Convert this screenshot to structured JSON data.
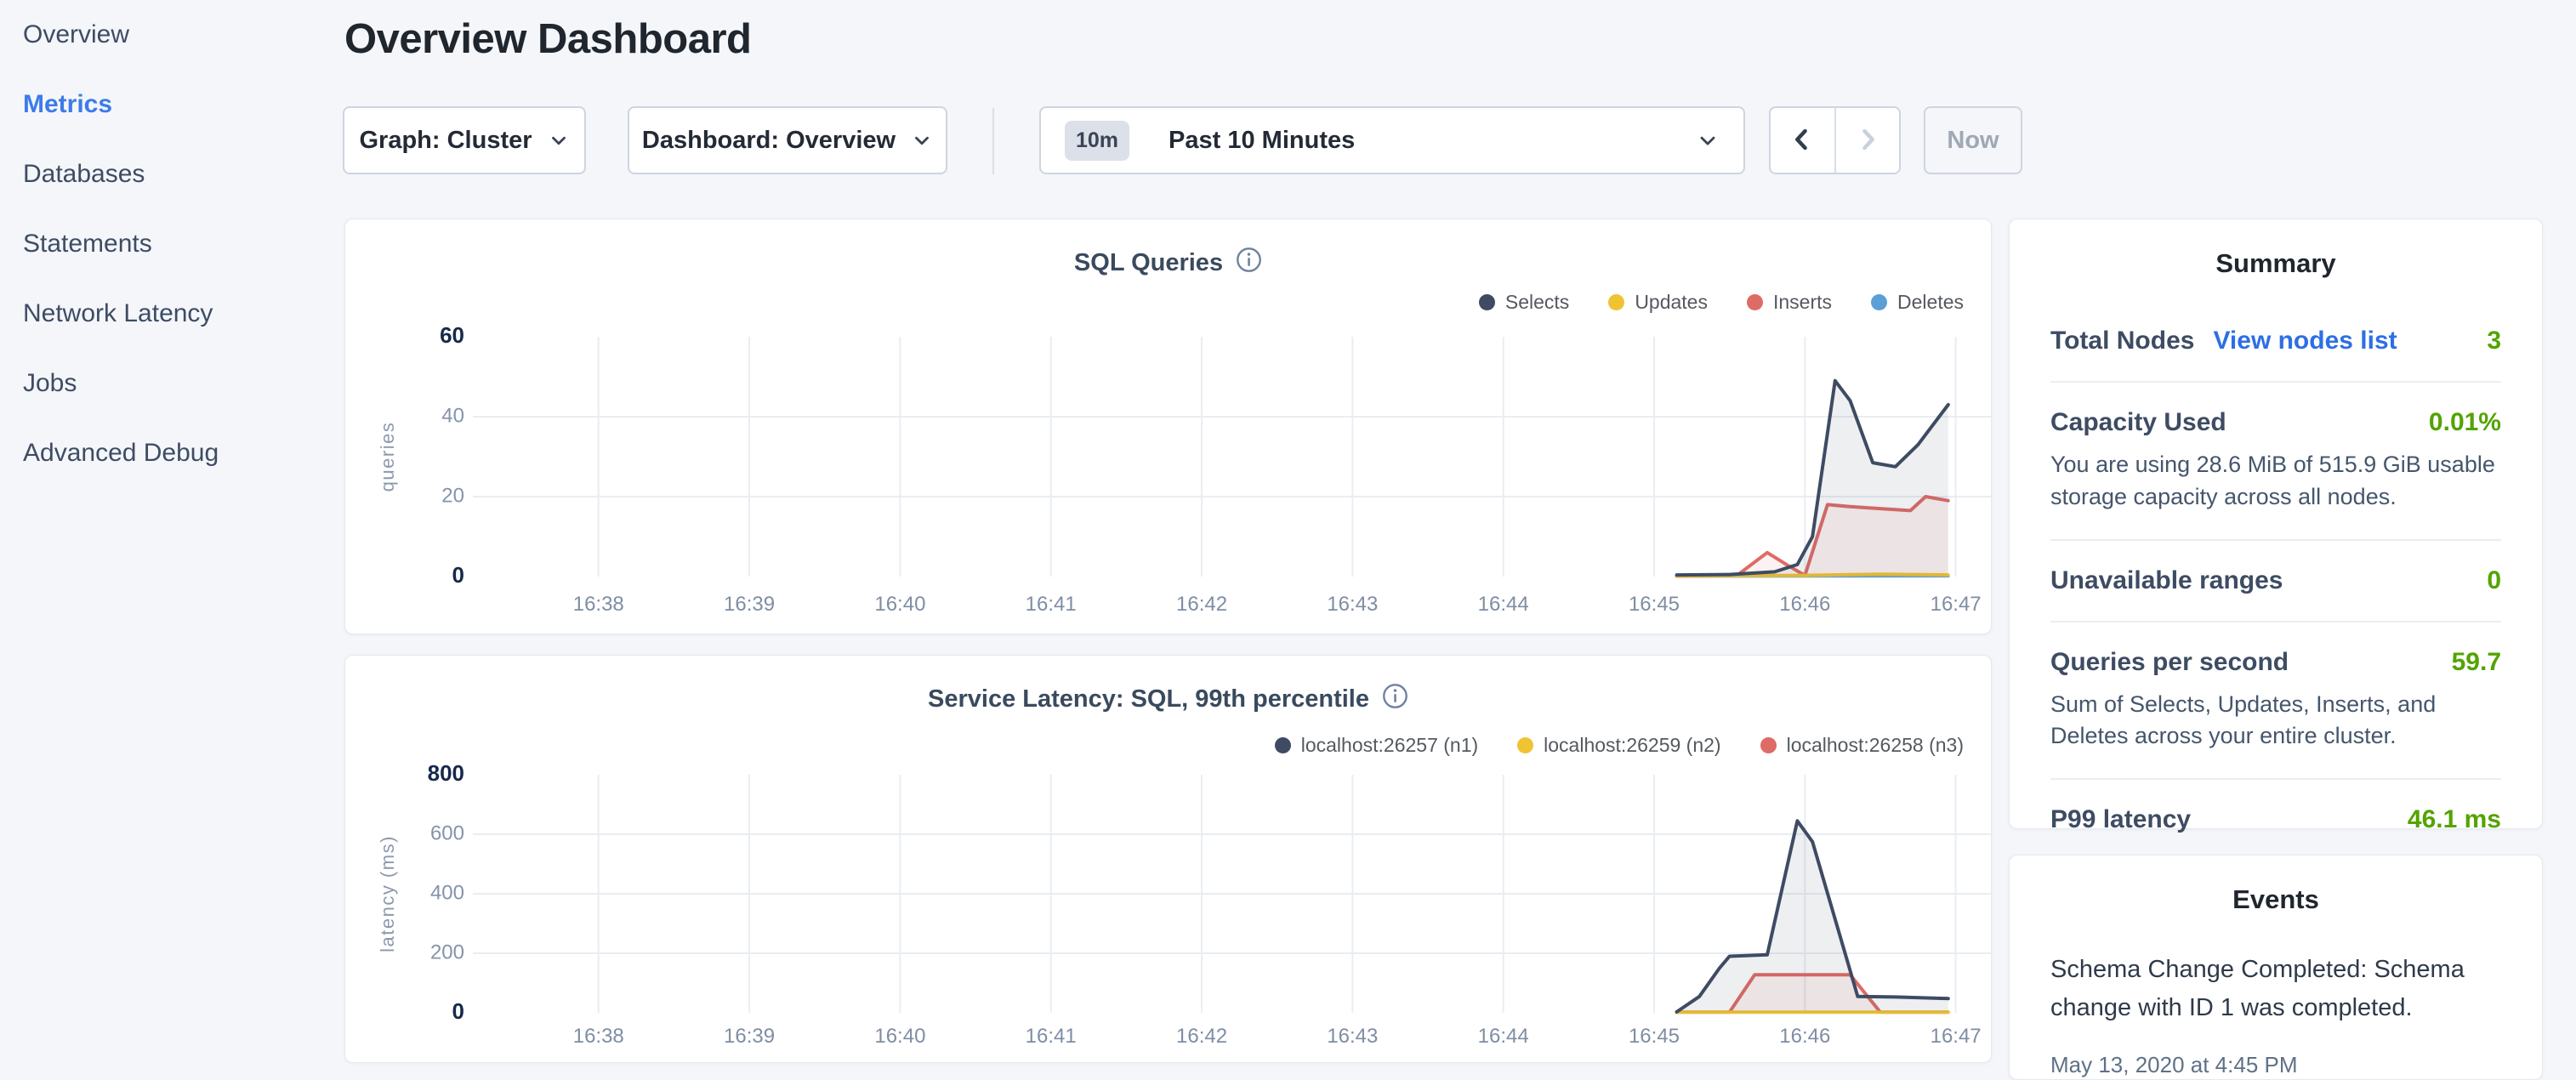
{
  "sidebar": {
    "items": [
      {
        "key": "overview",
        "label": "Overview",
        "active": false
      },
      {
        "key": "metrics",
        "label": "Metrics",
        "active": true
      },
      {
        "key": "databases",
        "label": "Databases",
        "active": false
      },
      {
        "key": "statements",
        "label": "Statements",
        "active": false
      },
      {
        "key": "network-latency",
        "label": "Network Latency",
        "active": false
      },
      {
        "key": "jobs",
        "label": "Jobs",
        "active": false
      },
      {
        "key": "advanced-debug",
        "label": "Advanced Debug",
        "active": false
      }
    ]
  },
  "header": {
    "title": "Overview Dashboard",
    "graph_dropdown_label": "Graph: Cluster",
    "dashboard_dropdown_label": "Dashboard: Overview",
    "time_range": {
      "badge": "10m",
      "label": "Past 10 Minutes"
    },
    "now_label": "Now",
    "icons": [
      "chevron-down-icon",
      "chevron-left-icon",
      "chevron-right-icon",
      "info-icon"
    ]
  },
  "colors": {
    "accent_blue": "#3D7BE8",
    "link_blue": "#2D6FE4",
    "value_green": "#54A300",
    "series_navy": "#3E4B63",
    "series_yellow": "#EFC332",
    "series_red": "#DE6B66",
    "series_blue": "#5C9FD6",
    "grid": "#E9EDF3"
  },
  "chart_data": [
    {
      "type": "line",
      "title": "SQL Queries",
      "ylabel": "queries",
      "xlabel": "",
      "ylim": [
        0,
        60
      ],
      "yticks": [
        0,
        20,
        40,
        60
      ],
      "xticks": [
        "16:38",
        "16:39",
        "16:40",
        "16:41",
        "16:42",
        "16:43",
        "16:44",
        "16:45",
        "16:46",
        "16:47"
      ],
      "x_domain": [
        "16:37:10",
        "16:47:14"
      ],
      "grid": true,
      "legend_position": "top-right",
      "series": [
        {
          "name": "Selects",
          "color": "#3E4B63",
          "points": [
            [
              "16:45:09",
              0.4
            ],
            [
              "16:45:30",
              0.5
            ],
            [
              "16:45:48",
              1.2
            ],
            [
              "16:45:57",
              3
            ],
            [
              "16:46:03",
              10
            ],
            [
              "16:46:12",
              49
            ],
            [
              "16:46:18",
              44
            ],
            [
              "16:46:27",
              28.5
            ],
            [
              "16:46:36",
              27.5
            ],
            [
              "16:46:45",
              33
            ],
            [
              "16:46:57",
              43
            ]
          ]
        },
        {
          "name": "Updates",
          "color": "#EFC332",
          "points": [
            [
              "16:45:09",
              0.2
            ],
            [
              "16:46:00",
              0.3
            ],
            [
              "16:46:30",
              0.6
            ],
            [
              "16:46:57",
              0.4
            ]
          ]
        },
        {
          "name": "Inserts",
          "color": "#DE6B66",
          "points": [
            [
              "16:45:09",
              0.1
            ],
            [
              "16:45:33",
              0.3
            ],
            [
              "16:45:45",
              6
            ],
            [
              "16:45:54",
              2.5
            ],
            [
              "16:46:00",
              0.3
            ],
            [
              "16:46:09",
              18
            ],
            [
              "16:46:18",
              17.5
            ],
            [
              "16:46:30",
              17
            ],
            [
              "16:46:42",
              16.5
            ],
            [
              "16:46:48",
              20
            ],
            [
              "16:46:57",
              19
            ]
          ]
        },
        {
          "name": "Deletes",
          "color": "#5C9FD6",
          "points": [
            [
              "16:45:09",
              0.1
            ],
            [
              "16:46:57",
              0.2
            ]
          ]
        }
      ]
    },
    {
      "type": "line",
      "title": "Service Latency: SQL, 99th percentile",
      "ylabel": "latency (ms)",
      "xlabel": "",
      "ylim": [
        0,
        800
      ],
      "yticks": [
        0,
        200,
        400,
        600,
        800
      ],
      "xticks": [
        "16:38",
        "16:39",
        "16:40",
        "16:41",
        "16:42",
        "16:43",
        "16:44",
        "16:45",
        "16:46",
        "16:47"
      ],
      "x_domain": [
        "16:37:10",
        "16:47:14"
      ],
      "grid": true,
      "legend_position": "top-right",
      "series": [
        {
          "name": "localhost:26257 (n1)",
          "color": "#3E4B63",
          "points": [
            [
              "16:45:09",
              3
            ],
            [
              "16:45:18",
              55
            ],
            [
              "16:45:26",
              150
            ],
            [
              "16:45:30",
              190
            ],
            [
              "16:45:45",
              195
            ],
            [
              "16:45:57",
              645
            ],
            [
              "16:46:03",
              575
            ],
            [
              "16:46:21",
              55
            ],
            [
              "16:46:36",
              53
            ],
            [
              "16:46:57",
              48
            ]
          ]
        },
        {
          "name": "localhost:26259 (n2)",
          "color": "#EFC332",
          "points": [
            [
              "16:45:09",
              2
            ],
            [
              "16:46:57",
              2
            ]
          ]
        },
        {
          "name": "localhost:26258 (n3)",
          "color": "#DE6B66",
          "points": [
            [
              "16:45:09",
              2
            ],
            [
              "16:45:30",
              2
            ],
            [
              "16:45:40",
              128
            ],
            [
              "16:46:18",
              128
            ],
            [
              "16:46:30",
              2
            ],
            [
              "16:46:57",
              2
            ]
          ]
        }
      ]
    }
  ],
  "summary": {
    "title": "Summary",
    "total_nodes": {
      "label": "Total Nodes",
      "link": "View nodes list",
      "value": "3"
    },
    "capacity": {
      "label": "Capacity Used",
      "value": "0.01%",
      "description": "You are using 28.6 MiB of 515.9 GiB usable storage capacity across all nodes."
    },
    "unavailable": {
      "label": "Unavailable ranges",
      "value": "0"
    },
    "qps": {
      "label": "Queries per second",
      "value": "59.7",
      "description": "Sum of Selects, Updates, Inserts, and Deletes across your entire cluster."
    },
    "p99": {
      "label": "P99 latency",
      "value": "46.1 ms"
    }
  },
  "events": {
    "title": "Events",
    "items": [
      {
        "message": "Schema Change Completed: Schema change with ID 1 was completed.",
        "timestamp": "May 13, 2020 at 4:45 PM"
      }
    ]
  }
}
